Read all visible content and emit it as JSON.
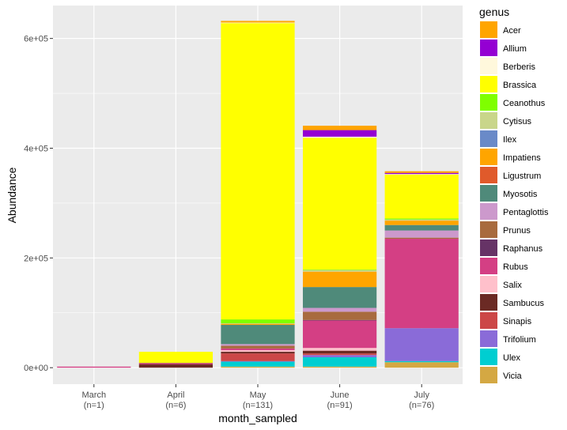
{
  "chart_data": {
    "type": "bar",
    "stacked": true,
    "xlabel": "month_sampled",
    "ylabel": "Abundance",
    "ylim": [
      -30000,
      660000
    ],
    "yticks": [
      {
        "value": 0,
        "label": "0e+00"
      },
      {
        "value": 200000,
        "label": "2e+05"
      },
      {
        "value": 400000,
        "label": "4e+05"
      },
      {
        "value": 600000,
        "label": "6e+05"
      }
    ],
    "categories": [
      {
        "label": "March",
        "sublabel": "(n=1)"
      },
      {
        "label": "April",
        "sublabel": "(n=6)"
      },
      {
        "label": "May",
        "sublabel": "(n=131)"
      },
      {
        "label": "June",
        "sublabel": "(n=91)"
      },
      {
        "label": "July",
        "sublabel": "(n=76)"
      }
    ],
    "legend_title": "genus",
    "legend_position": "right",
    "grid": true,
    "series": [
      {
        "name": "Acer",
        "color": "#FFA500",
        "values": [
          0,
          0,
          3000,
          8000,
          3000
        ]
      },
      {
        "name": "Allium",
        "color": "#9400D3",
        "values": [
          0,
          0,
          0,
          12000,
          2000
        ]
      },
      {
        "name": "Berberis",
        "color": "#FFF8DC",
        "values": [
          0,
          0,
          1000,
          2000,
          1000
        ]
      },
      {
        "name": "Brassica",
        "color": "#FFFF00",
        "values": [
          0,
          20000,
          540000,
          240000,
          80000
        ]
      },
      {
        "name": "Ceanothus",
        "color": "#7FFF00",
        "values": [
          0,
          0,
          7000,
          1000,
          2000
        ]
      },
      {
        "name": "Cytisus",
        "color": "#C9D68A",
        "values": [
          0,
          0,
          1000,
          3000,
          2000
        ]
      },
      {
        "name": "Ilex",
        "color": "#6A8AC8",
        "values": [
          0,
          0,
          0,
          0,
          0
        ]
      },
      {
        "name": "Impatiens",
        "color": "#FFA500",
        "values": [
          0,
          0,
          2000,
          28000,
          8000
        ]
      },
      {
        "name": "Ligustrum",
        "color": "#E05A2B",
        "values": [
          0,
          0,
          0,
          0,
          0
        ]
      },
      {
        "name": "Myosotis",
        "color": "#4F8A7A",
        "values": [
          0,
          0,
          35000,
          38000,
          10000
        ]
      },
      {
        "name": "Pentaglottis",
        "color": "#CC99CC",
        "values": [
          0,
          0,
          3000,
          7000,
          13000
        ]
      },
      {
        "name": "Prunus",
        "color": "#A86B3E",
        "values": [
          0,
          1000,
          5000,
          15000,
          2000
        ]
      },
      {
        "name": "Raphanus",
        "color": "#663366",
        "values": [
          0,
          0,
          0,
          1000,
          0
        ]
      },
      {
        "name": "Rubus",
        "color": "#D43F84",
        "values": [
          2000,
          2000,
          3000,
          50000,
          163000
        ]
      },
      {
        "name": "Salix",
        "color": "#FFC0CB",
        "values": [
          0,
          0,
          3000,
          5000,
          0
        ]
      },
      {
        "name": "Sambucus",
        "color": "#6B2A24",
        "values": [
          0,
          6000,
          3000,
          5000,
          0
        ]
      },
      {
        "name": "Sinapis",
        "color": "#CC4747",
        "values": [
          0,
          0,
          14000,
          3000,
          0
        ]
      },
      {
        "name": "Trifolium",
        "color": "#8A6BD8",
        "values": [
          0,
          0,
          1000,
          4000,
          60000
        ]
      },
      {
        "name": "Ulex",
        "color": "#00CED1",
        "values": [
          0,
          0,
          9000,
          17000,
          2000
        ]
      },
      {
        "name": "Vicia",
        "color": "#D4A843",
        "values": [
          0,
          0,
          2000,
          2000,
          10000
        ]
      }
    ]
  }
}
